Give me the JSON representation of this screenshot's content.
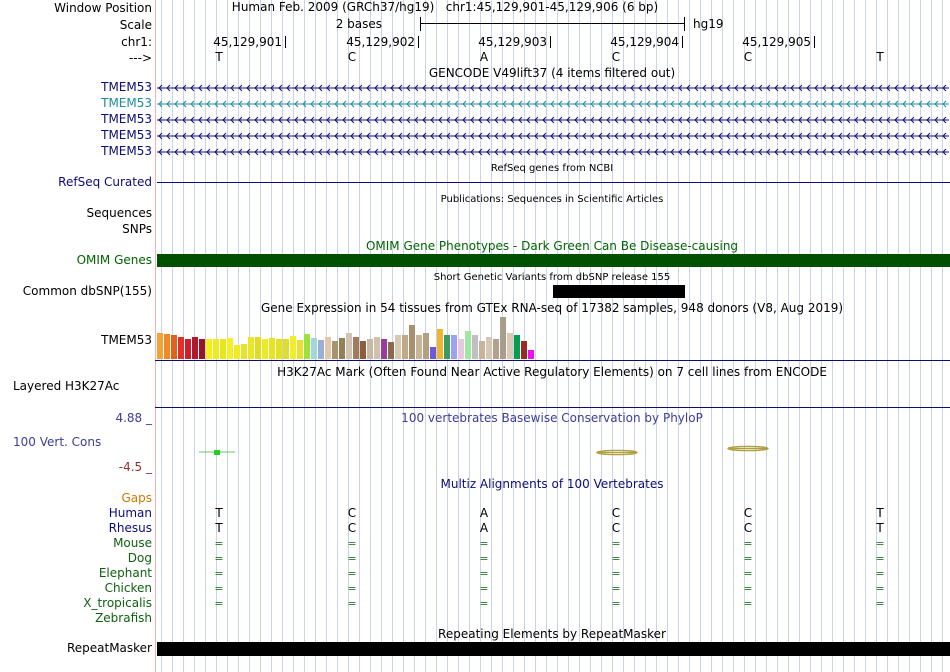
{
  "colors": {
    "gencode": "#0c0c78",
    "gencode_alt": "#1c8c9c",
    "refseq": "#0c0c78",
    "omim": "#005000",
    "omim_label": "#006400",
    "conservation": "#3c3c9c",
    "cons_low": "#9c2c2c",
    "gaps": "#d07800",
    "species_green": "#106010",
    "human": "#0c0c78",
    "grid": "#c9d4e6"
  },
  "header": {
    "window_position_label": "Window Position",
    "scale_label": "Scale",
    "chrom_label": "chr1:",
    "strand_label": "--->",
    "assembly": "Human Feb. 2009 (GRCh37/hg19)",
    "position": "chr1:45,129,901-45,129,906 (6 bp)",
    "scale_text": "2 bases",
    "db_name": "hg19",
    "coordinates": [
      "45,129,901",
      "45,129,902",
      "45,129,903",
      "45,129,904",
      "45,129,905"
    ],
    "bases": [
      "T",
      "C",
      "A",
      "C",
      "C",
      "T"
    ]
  },
  "tracks": {
    "gencode": {
      "title": "GENCODE V49lift37 (4 items filtered out)",
      "items": [
        "TMEM53",
        "TMEM53",
        "TMEM53",
        "TMEM53",
        "TMEM53"
      ]
    },
    "refseq": {
      "title": "RefSeq genes from NCBI",
      "label": "RefSeq Curated"
    },
    "publications": {
      "title": "Publications: Sequences in Scientific Articles",
      "label1": "Sequences",
      "label2": "SNPs"
    },
    "omim": {
      "title": "OMIM Gene Phenotypes - Dark Green Can Be Disease-causing",
      "label": "OMIM Genes"
    },
    "dbsnp": {
      "title": "Short Genetic Variants from dbSNP release 155",
      "label": "Common dbSNP(155)"
    },
    "gtex": {
      "title": "Gene Expression in 54 tissues from GTEx RNA-seq of 17382 samples, 948 donors (V8, Aug 2019)",
      "label": "TMEM53",
      "bars": [
        {
          "c": "#f4a236",
          "h": 26
        },
        {
          "c": "#f08a26",
          "h": 25
        },
        {
          "c": "#e0621c",
          "h": 24
        },
        {
          "c": "#e0302c",
          "h": 22
        },
        {
          "c": "#d31c2c",
          "h": 20
        },
        {
          "c": "#b01830",
          "h": 22
        },
        {
          "c": "#9a1428",
          "h": 20
        },
        {
          "c": "#f2ef1c",
          "h": 20
        },
        {
          "c": "#eeec1e",
          "h": 20
        },
        {
          "c": "#e8e61e",
          "h": 20
        },
        {
          "c": "#f4f022",
          "h": 21
        },
        {
          "c": "#f0ec26",
          "h": 14
        },
        {
          "c": "#e6e42a",
          "h": 15
        },
        {
          "c": "#eae62a",
          "h": 22
        },
        {
          "c": "#e0dc22",
          "h": 22
        },
        {
          "c": "#ece82a",
          "h": 20
        },
        {
          "c": "#e8e422",
          "h": 21
        },
        {
          "c": "#e4e026",
          "h": 20
        },
        {
          "c": "#dede2a",
          "h": 20
        },
        {
          "c": "#f0ec30",
          "h": 23
        },
        {
          "c": "#e6e22e",
          "h": 19
        },
        {
          "c": "#9ce23c",
          "h": 25
        },
        {
          "c": "#a0d8d8",
          "h": 21
        },
        {
          "c": "#9aaed8",
          "h": 19
        },
        {
          "c": "#e2c8a8",
          "h": 22
        },
        {
          "c": "#a8946c",
          "h": 18
        },
        {
          "c": "#948058",
          "h": 21
        },
        {
          "c": "#d0c4b4",
          "h": 26
        },
        {
          "c": "#a07c5c",
          "h": 22
        },
        {
          "c": "#8c5c3c",
          "h": 18
        },
        {
          "c": "#c8b8a4",
          "h": 20
        },
        {
          "c": "#d0c0ac",
          "h": 22
        },
        {
          "c": "#9a3c9c",
          "h": 20
        },
        {
          "c": "#886a4c",
          "h": 17
        },
        {
          "c": "#d8c8b0",
          "h": 24
        },
        {
          "c": "#c0a888",
          "h": 24
        },
        {
          "c": "#a89070",
          "h": 34
        },
        {
          "c": "#c8b498",
          "h": 24
        },
        {
          "c": "#b4a080",
          "h": 26
        },
        {
          "c": "#6b5bd8",
          "h": 12
        },
        {
          "c": "#f0b430",
          "h": 30
        },
        {
          "c": "#3c9c60",
          "h": 24
        },
        {
          "c": "#a0a0f0",
          "h": 24
        },
        {
          "c": "#e8c8e0",
          "h": 20
        },
        {
          "c": "#a0e8a0",
          "h": 28
        },
        {
          "c": "#c0c0c0",
          "h": 24
        },
        {
          "c": "#c8b49c",
          "h": 18
        },
        {
          "c": "#d4c8b4",
          "h": 22
        },
        {
          "c": "#b4a08c",
          "h": 20
        },
        {
          "c": "#a89c8c",
          "h": 42
        },
        {
          "c": "#dcc8b4",
          "h": 26
        },
        {
          "c": "#00a050",
          "h": 24
        },
        {
          "c": "#9c2828",
          "h": 18
        },
        {
          "c": "#f00ff0",
          "h": 9
        }
      ]
    },
    "h3k27ac": {
      "title": "H3K27Ac Mark (Often Found Near Active Regulatory Elements) on 7 cell lines from ENCODE",
      "label": "Layered H3K27Ac"
    },
    "phylop": {
      "title": "100 vertebrates Basewise Conservation by PhyloP",
      "label": "100 Vert. Cons",
      "max": "4.88 _",
      "min": "-4.5 _"
    },
    "multiz": {
      "title": "Multiz Alignments of 100 Vertebrates",
      "gaps_label": "Gaps",
      "species": [
        {
          "name": "Human",
          "row": [
            "T",
            "C",
            "A",
            "C",
            "C",
            "T"
          ]
        },
        {
          "name": "Rhesus",
          "row": [
            "T",
            "C",
            "A",
            "C",
            "C",
            "T"
          ]
        },
        {
          "name": "Mouse",
          "row": [
            "=",
            "=",
            "=",
            "=",
            "=",
            "="
          ]
        },
        {
          "name": "Dog",
          "row": [
            "=",
            "=",
            "=",
            "=",
            "=",
            "="
          ]
        },
        {
          "name": "Elephant",
          "row": [
            "=",
            "=",
            "=",
            "=",
            "=",
            "="
          ]
        },
        {
          "name": "Chicken",
          "row": [
            "=",
            "=",
            "=",
            "=",
            "=",
            "="
          ]
        },
        {
          "name": "X_tropicalis",
          "row": [
            "=",
            "=",
            "=",
            "=",
            "=",
            "="
          ]
        },
        {
          "name": "Zebrafish",
          "row": []
        }
      ]
    },
    "repeatmasker": {
      "title": "Repeating Elements by RepeatMasker",
      "label": "RepeatMasker"
    }
  }
}
